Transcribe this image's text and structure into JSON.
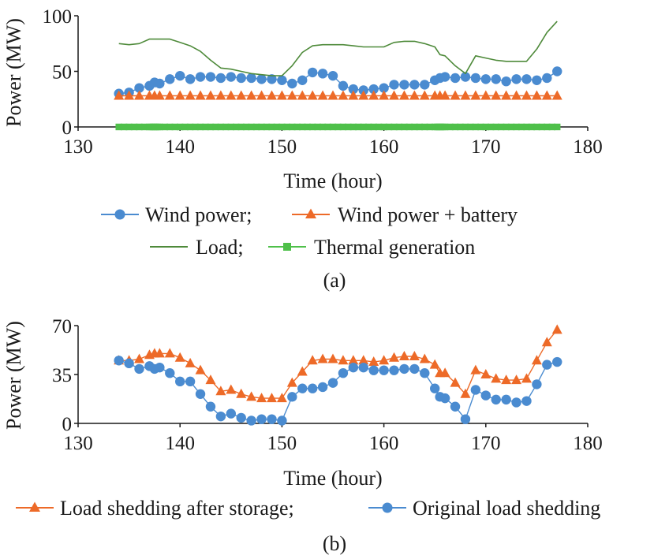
{
  "colors": {
    "blue": "#4a8bd0",
    "orange": "#ed6a28",
    "green_line": "#4e8a3a",
    "green_marker": "#4fc04a",
    "axis": "#1a1a1a"
  },
  "chart_data": [
    {
      "type": "line",
      "caption": "(a)",
      "xlabel": "Time (hour)",
      "ylabel": "Power (MW)",
      "xlim": [
        130,
        180
      ],
      "ylim": [
        0,
        100
      ],
      "xticks": [
        130,
        140,
        150,
        160,
        170,
        180
      ],
      "yticks": [
        0,
        50,
        100
      ],
      "grid": false,
      "legend_rows": [
        [
          "Wind power;",
          "Wind power + battery"
        ],
        [
          "Load;",
          "Thermal generation"
        ]
      ],
      "series": [
        {
          "name": "Wind power;",
          "marker": "circle",
          "color": "#4a8bd0",
          "x": [
            134,
            135,
            136,
            137,
            137.5,
            138,
            139,
            140,
            141,
            142,
            143,
            144,
            145,
            146,
            147,
            148,
            149,
            150,
            151,
            152,
            153,
            154,
            155,
            156,
            157,
            158,
            159,
            160,
            161,
            162,
            163,
            164,
            165,
            165.5,
            166,
            167,
            168,
            169,
            170,
            171,
            172,
            173,
            174,
            175,
            176,
            177
          ],
          "y": [
            30,
            31,
            35,
            37,
            40,
            39,
            43,
            46,
            43,
            45,
            45,
            44,
            45,
            44,
            44,
            43,
            43,
            42,
            39,
            42,
            49,
            48,
            46,
            37,
            34,
            33,
            34,
            35,
            38,
            38,
            38,
            38,
            42,
            44,
            45,
            44,
            45,
            44,
            43,
            43,
            41,
            43,
            43,
            42,
            44,
            50
          ]
        },
        {
          "name": "Wind power + battery",
          "marker": "triangle",
          "color": "#ed6a28",
          "x": [
            134,
            135,
            136,
            137,
            137.5,
            138,
            139,
            140,
            141,
            142,
            143,
            144,
            145,
            146,
            147,
            148,
            149,
            150,
            151,
            152,
            153,
            154,
            155,
            156,
            157,
            158,
            159,
            160,
            161,
            162,
            163,
            164,
            165,
            165.5,
            166,
            167,
            168,
            169,
            170,
            171,
            172,
            173,
            174,
            175,
            176,
            177
          ],
          "y": [
            28,
            28,
            28,
            28,
            28,
            28,
            28,
            28,
            28,
            28,
            28,
            28,
            28,
            28,
            28,
            28,
            28,
            28,
            28,
            28,
            28,
            28,
            28,
            28,
            28,
            28,
            28,
            28,
            28,
            28,
            28,
            28,
            28,
            28,
            28,
            28,
            28,
            28,
            28,
            28,
            28,
            28,
            28,
            28,
            28,
            28
          ]
        },
        {
          "name": "Load;",
          "marker": "none",
          "color": "#4e8a3a",
          "x": [
            134,
            135,
            136,
            137,
            138,
            139,
            140,
            141,
            142,
            143,
            144,
            145,
            146,
            147,
            148,
            149,
            150,
            151,
            152,
            153,
            154,
            155,
            156,
            157,
            158,
            159,
            160,
            161,
            162,
            163,
            164,
            165,
            165.5,
            166,
            167,
            168,
            169,
            170,
            171,
            172,
            173,
            174,
            175,
            176,
            177
          ],
          "y": [
            75,
            74,
            75,
            79,
            79,
            79,
            76,
            73,
            68,
            60,
            53,
            52,
            50,
            48,
            47,
            46,
            46,
            55,
            67,
            73,
            74,
            74,
            74,
            73,
            72,
            72,
            72,
            76,
            77,
            77,
            75,
            72,
            65,
            64,
            55,
            48,
            64,
            62,
            60,
            59,
            59,
            59,
            70,
            85,
            95
          ]
        },
        {
          "name": "Thermal generation",
          "marker": "square",
          "color": "#4fc04a",
          "x": [
            134,
            134.5,
            135,
            135.5,
            136,
            136.5,
            137,
            137.2,
            137.4,
            137.6,
            137.8,
            138,
            138.5,
            139,
            139.5,
            140,
            140.5,
            141,
            141.5,
            142,
            142.5,
            143,
            143.5,
            144,
            144.5,
            145,
            145.5,
            146,
            146.5,
            147,
            147.5,
            148,
            148.5,
            149,
            149.5,
            150,
            150.5,
            151,
            151.5,
            152,
            152.5,
            153,
            153.5,
            154,
            154.5,
            155,
            155.5,
            156,
            156.5,
            157,
            157.5,
            158,
            158.5,
            159,
            159.5,
            160,
            160.5,
            161,
            161.5,
            162,
            162.5,
            163,
            163.5,
            164,
            164.5,
            165,
            165.2,
            165.4,
            165.6,
            165.8,
            166,
            166.5,
            167,
            167.5,
            168,
            168.5,
            169,
            169.5,
            170,
            170.5,
            171,
            171.5,
            172,
            172.5,
            173,
            173.5,
            174,
            174.5,
            175,
            175.5,
            176,
            176.5,
            177
          ],
          "y": [
            0,
            0,
            0,
            0,
            0,
            0,
            0,
            0,
            0,
            0,
            0,
            0,
            0,
            0,
            0,
            0,
            0,
            0,
            0,
            0,
            0,
            0,
            0,
            0,
            0,
            0,
            0,
            0,
            0,
            0,
            0,
            0,
            0,
            0,
            0,
            0,
            0,
            0,
            0,
            0,
            0,
            0,
            0,
            0,
            0,
            0,
            0,
            0,
            0,
            0,
            0,
            0,
            0,
            0,
            0,
            0,
            0,
            0,
            0,
            0,
            0,
            0,
            0,
            0,
            0,
            0,
            0,
            0,
            0,
            0,
            0,
            0,
            0,
            0,
            0,
            0,
            0,
            0,
            0,
            0,
            0,
            0,
            0,
            0,
            0,
            0,
            0,
            0,
            0,
            0,
            0,
            0,
            0
          ]
        }
      ]
    },
    {
      "type": "line",
      "caption": "(b)",
      "xlabel": "Time (hour)",
      "ylabel": "Power (MW)",
      "xlim": [
        130,
        180
      ],
      "ylim": [
        0,
        70
      ],
      "xticks": [
        130,
        140,
        150,
        160,
        170,
        180
      ],
      "yticks": [
        0,
        35,
        70
      ],
      "grid": false,
      "legend_rows": [
        [
          "Load shedding after storage;",
          "Original load shedding"
        ]
      ],
      "series": [
        {
          "name": "Load shedding after storage;",
          "marker": "triangle",
          "color": "#ed6a28",
          "x": [
            134,
            135,
            136,
            137,
            137.5,
            138,
            139,
            140,
            141,
            142,
            143,
            144,
            145,
            146,
            147,
            148,
            149,
            150,
            151,
            152,
            153,
            154,
            155,
            156,
            157,
            158,
            159,
            160,
            161,
            162,
            163,
            164,
            165,
            165.5,
            166,
            167,
            168,
            169,
            170,
            171,
            172,
            173,
            174,
            175,
            176,
            177
          ],
          "y": [
            45,
            45,
            46,
            49,
            50,
            50,
            50,
            47,
            43,
            38,
            31,
            23,
            24,
            21,
            19,
            18,
            18,
            18,
            29,
            37,
            45,
            46,
            46,
            45,
            45,
            45,
            44,
            45,
            47,
            48,
            48,
            46,
            42,
            36,
            36,
            29,
            21,
            38,
            35,
            32,
            31,
            31,
            32,
            45,
            58,
            67
          ]
        },
        {
          "name": "Original load shedding",
          "marker": "circle",
          "color": "#4a8bd0",
          "x": [
            134,
            135,
            136,
            137,
            137.5,
            138,
            139,
            140,
            141,
            142,
            143,
            144,
            145,
            146,
            147,
            148,
            149,
            150,
            151,
            152,
            153,
            154,
            155,
            156,
            157,
            158,
            159,
            160,
            161,
            162,
            163,
            164,
            165,
            165.5,
            166,
            167,
            168,
            169,
            170,
            171,
            172,
            173,
            174,
            175,
            176,
            177
          ],
          "y": [
            45,
            43,
            39,
            41,
            39,
            40,
            36,
            30,
            30,
            21,
            12,
            5,
            7,
            4,
            2,
            3,
            3,
            2,
            19,
            25,
            25,
            26,
            29,
            36,
            40,
            40,
            38,
            38,
            38,
            39,
            39,
            36,
            25,
            19,
            18,
            12,
            3,
            24,
            20,
            17,
            17,
            15,
            16,
            28,
            42,
            44
          ]
        }
      ]
    }
  ]
}
